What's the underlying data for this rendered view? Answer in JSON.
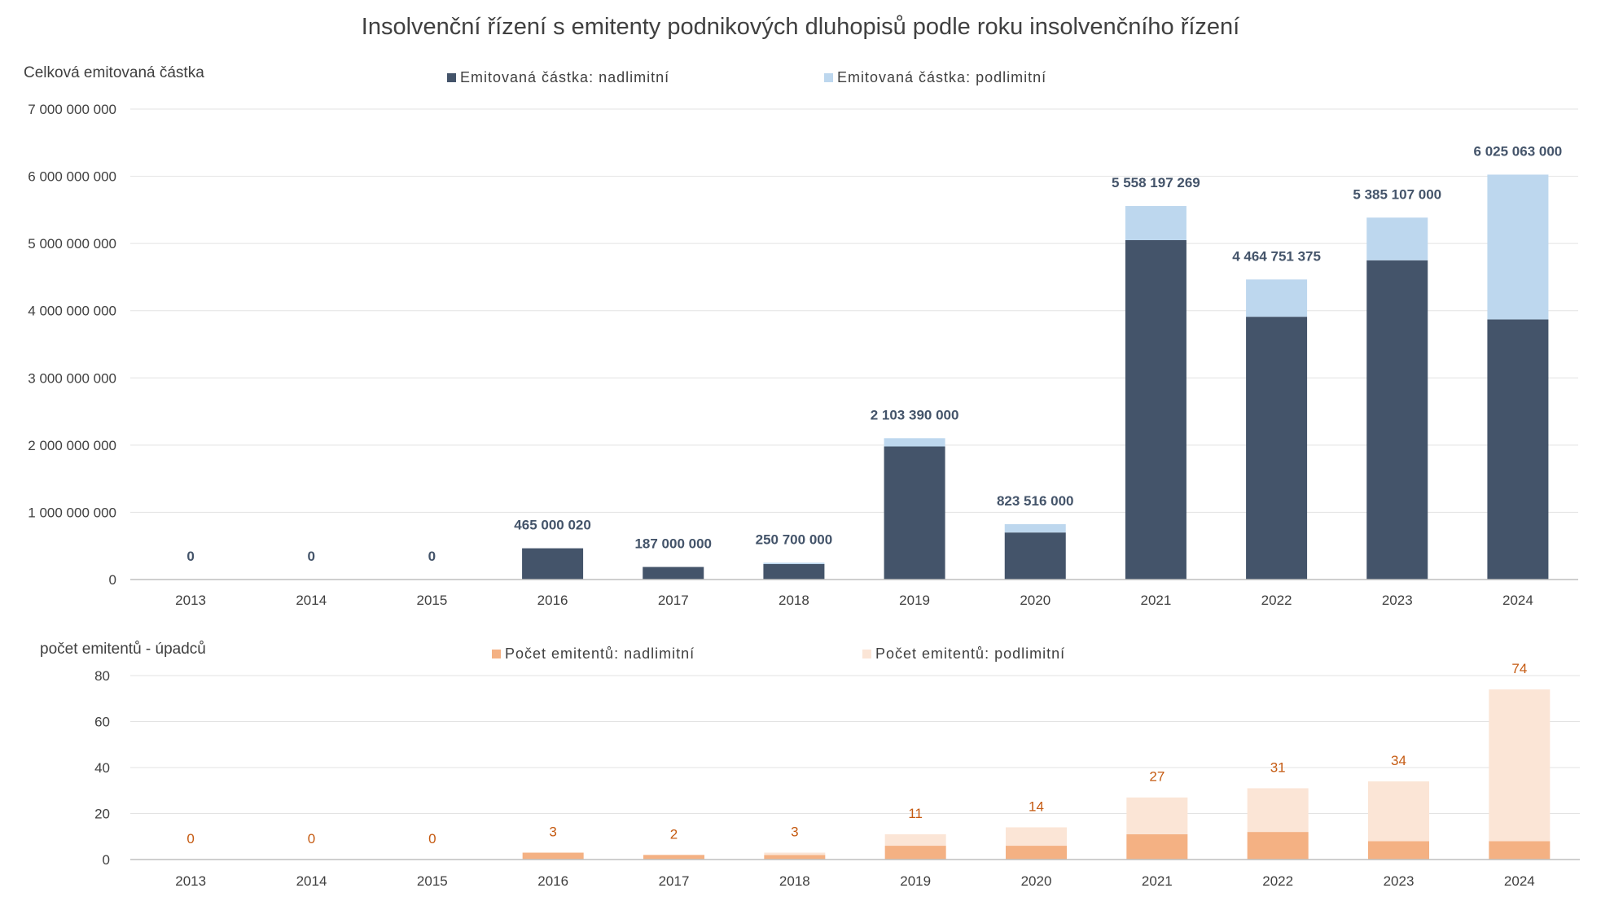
{
  "title": "Insolvenční řízení s emitenty podnikových dluhopisů podle roku insolvenčního řízení",
  "colors": {
    "nad_amount": "#44546a",
    "pod_amount": "#bdd7ee",
    "nad_count": "#f4b183",
    "pod_count": "#fbe5d6",
    "label_amount": "#44546a",
    "label_count": "#c55a11"
  },
  "chart_data": [
    {
      "type": "bar",
      "stacked": true,
      "ylabel": "Celková emitovaná částka",
      "ylim": [
        0,
        7000000000
      ],
      "yticks": [
        "0",
        "1 000 000 000",
        "2 000 000 000",
        "3 000 000 000",
        "4 000 000 000",
        "5 000 000 000",
        "6 000 000 000",
        "7 000 000 000"
      ],
      "grid": true,
      "legend_position": "top",
      "categories": [
        "2013",
        "2014",
        "2015",
        "2016",
        "2017",
        "2018",
        "2019",
        "2020",
        "2021",
        "2022",
        "2023",
        "2024"
      ],
      "series": [
        {
          "name": "Emitovaná částka: nadlimitní",
          "values": [
            0,
            0,
            0,
            465000020,
            187000000,
            230000000,
            1980000000,
            700000000,
            5050000000,
            3910000000,
            4750000000,
            3870000000
          ]
        },
        {
          "name": "Emitovaná částka: podlimitní",
          "values": [
            0,
            0,
            0,
            0,
            0,
            20700000,
            123390000,
            123516000,
            508197269,
            554751375,
            635107000,
            2155063000
          ]
        }
      ],
      "total_labels": [
        "0",
        "0",
        "0",
        "465 000 020",
        "187 000 000",
        "250 700 000",
        "2 103 390 000",
        "823 516 000",
        "5 558 197 269",
        "4 464 751 375",
        "5 385 107 000",
        "6 025 063 000"
      ]
    },
    {
      "type": "bar",
      "stacked": true,
      "ylabel": "počet emitentů  - úpadců",
      "ylim": [
        0,
        80
      ],
      "yticks": [
        "0",
        "20",
        "40",
        "60",
        "80"
      ],
      "grid": true,
      "legend_position": "top",
      "categories": [
        "2013",
        "2014",
        "2015",
        "2016",
        "2017",
        "2018",
        "2019",
        "2020",
        "2021",
        "2022",
        "2023",
        "2024"
      ],
      "series": [
        {
          "name": "Počet emitentů: nadlimitní",
          "values": [
            0,
            0,
            0,
            3,
            2,
            2,
            6,
            6,
            11,
            12,
            8,
            8
          ]
        },
        {
          "name": "Počet emitentů: podlimitní",
          "values": [
            0,
            0,
            0,
            0,
            0,
            1,
            5,
            8,
            16,
            19,
            26,
            66
          ]
        }
      ],
      "total_labels": [
        "0",
        "0",
        "0",
        "3",
        "2",
        "3",
        "11",
        "14",
        "27",
        "31",
        "34",
        "74"
      ]
    }
  ]
}
